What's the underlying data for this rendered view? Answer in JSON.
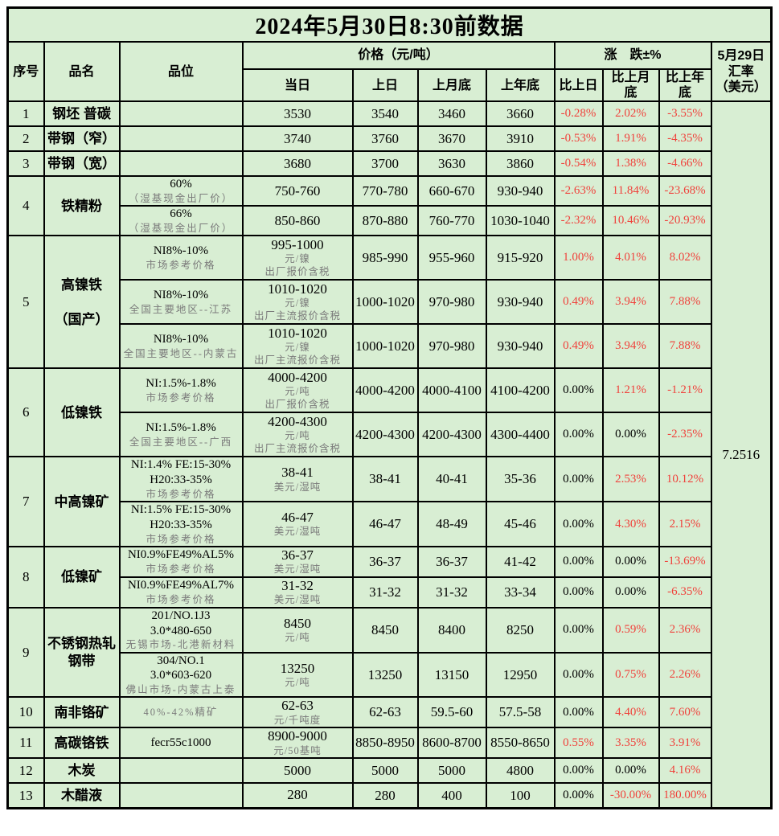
{
  "title": "2024年5月30日8:30前数据",
  "colors": {
    "cell_bg": "#d8eed3",
    "accent_red": "#f0423c",
    "subtext": "#7b7b7b",
    "border": "#000000"
  },
  "columns": {
    "serial": "序号",
    "product": "品名",
    "grade": "品位",
    "price_group": "价格（元/吨）",
    "today": "当日",
    "prev_day": "上日",
    "month_end": "上月底",
    "year_end": "上年底",
    "delta_group": "涨　跌±%",
    "vs_prev_day": "比上日",
    "vs_month_end": "比上月\n底",
    "vs_year_end": "比上年\n底",
    "exchange": "5月29日\n汇率\n（美元）"
  },
  "exchange": {
    "value": "7.2516"
  },
  "rows": [
    {
      "no": "1",
      "name": "钢坯 普碳",
      "subrows": [
        {
          "grade": [],
          "grade_sub": [],
          "price": "3530",
          "price_sub": [],
          "prev": "3540",
          "month": "3460",
          "year": "3660",
          "d1": "-0.28%",
          "d2": "2.02%",
          "d3": "-3.55%"
        }
      ]
    },
    {
      "no": "2",
      "name": "带钢（窄）",
      "subrows": [
        {
          "grade": [],
          "grade_sub": [],
          "price": "3740",
          "price_sub": [],
          "prev": "3760",
          "month": "3670",
          "year": "3910",
          "d1": "-0.53%",
          "d2": "1.91%",
          "d3": "-4.35%"
        }
      ]
    },
    {
      "no": "3",
      "name": "带钢（宽）",
      "subrows": [
        {
          "grade": [],
          "grade_sub": [],
          "price": "3680",
          "price_sub": [],
          "prev": "3700",
          "month": "3630",
          "year": "3860",
          "d1": "-0.54%",
          "d2": "1.38%",
          "d3": "-4.66%"
        }
      ]
    },
    {
      "no": "4",
      "name": "铁精粉",
      "subrows": [
        {
          "grade": [
            "60%"
          ],
          "grade_sub": [
            "（湿基现金出厂价）"
          ],
          "price": "750-760",
          "price_sub": [],
          "prev": "770-780",
          "month": "660-670",
          "year": "930-940",
          "d1": "-2.63%",
          "d2": "11.84%",
          "d3": "-23.68%"
        },
        {
          "grade": [
            "66%"
          ],
          "grade_sub": [
            "（湿基现金出厂价）"
          ],
          "price": "850-860",
          "price_sub": [],
          "prev": "870-880",
          "month": "760-770",
          "year": "1030-1040",
          "d1": "-2.32%",
          "d2": "10.46%",
          "d3": "-20.93%"
        }
      ]
    },
    {
      "no": "5",
      "name": "高镍铁\n\n（国产）",
      "subrows": [
        {
          "grade": [
            "NI8%-10%"
          ],
          "grade_sub": [
            "市场参考价格"
          ],
          "price": "995-1000",
          "price_sub": [
            "元/镍",
            "出厂报价含税"
          ],
          "prev": "985-990",
          "month": "955-960",
          "year": "915-920",
          "d1": "1.00%",
          "d2": "4.01%",
          "d3": "8.02%"
        },
        {
          "grade": [
            "NI8%-10%"
          ],
          "grade_sub": [
            "全国主要地区--江苏"
          ],
          "price": "1010-1020",
          "price_sub": [
            "元/镍",
            "出厂主流报价含税"
          ],
          "prev": "1000-1020",
          "month": "970-980",
          "year": "930-940",
          "d1": "0.49%",
          "d2": "3.94%",
          "d3": "7.88%"
        },
        {
          "grade": [
            "NI8%-10%"
          ],
          "grade_sub": [
            "全国主要地区--内蒙古"
          ],
          "price": "1010-1020",
          "price_sub": [
            "元/镍",
            "出厂主流报价含税"
          ],
          "prev": "1000-1020",
          "month": "970-980",
          "year": "930-940",
          "d1": "0.49%",
          "d2": "3.94%",
          "d3": "7.88%"
        }
      ]
    },
    {
      "no": "6",
      "name": "低镍铁",
      "subrows": [
        {
          "grade": [
            "NI:1.5%-1.8%"
          ],
          "grade_sub": [
            "市场参考价格"
          ],
          "price": "4000-4200",
          "price_sub": [
            "元/吨",
            "出厂报价含税"
          ],
          "prev": "4000-4200",
          "month": "4000-4100",
          "year": "4100-4200",
          "d1": "0.00%",
          "d2": "1.21%",
          "d3": "-1.21%"
        },
        {
          "grade": [
            "NI:1.5%-1.8%"
          ],
          "grade_sub": [
            "全国主要地区--广西"
          ],
          "price": "4200-4300",
          "price_sub": [
            "元/吨",
            "出厂主流报价含税"
          ],
          "prev": "4200-4300",
          "month": "4200-4300",
          "year": "4300-4400",
          "d1": "0.00%",
          "d2": "0.00%",
          "d3": "-2.35%"
        }
      ]
    },
    {
      "no": "7",
      "name": "中高镍矿",
      "subrows": [
        {
          "grade": [
            "NI:1.4% FE:15-30%",
            "H20:33-35%"
          ],
          "grade_sub": [
            "市场参考价格"
          ],
          "price": "38-41",
          "price_sub": [
            "美元/湿吨"
          ],
          "prev": "38-41",
          "month": "40-41",
          "year": "35-36",
          "d1": "0.00%",
          "d2": "2.53%",
          "d3": "10.12%"
        },
        {
          "grade": [
            "NI:1.5% FE:15-30%",
            "H20:33-35%"
          ],
          "grade_sub": [
            "市场参考价格"
          ],
          "price": "46-47",
          "price_sub": [
            "美元/湿吨"
          ],
          "prev": "46-47",
          "month": "48-49",
          "year": "45-46",
          "d1": "0.00%",
          "d2": "4.30%",
          "d3": "2.15%"
        }
      ]
    },
    {
      "no": "8",
      "name": "低镍矿",
      "subrows": [
        {
          "grade": [
            "NI0.9%FE49%AL5%"
          ],
          "grade_sub": [
            "市场参考价格"
          ],
          "price": "36-37",
          "price_sub": [
            "美元/湿吨"
          ],
          "prev": "36-37",
          "month": "36-37",
          "year": "41-42",
          "d1": "0.00%",
          "d2": "0.00%",
          "d3": "-13.69%"
        },
        {
          "grade": [
            "NI0.9%FE49%AL7%"
          ],
          "grade_sub": [
            "市场参考价格"
          ],
          "price": "31-32",
          "price_sub": [
            "美元/湿吨"
          ],
          "prev": "31-32",
          "month": "31-32",
          "year": "33-34",
          "d1": "0.00%",
          "d2": "0.00%",
          "d3": "-6.35%"
        }
      ]
    },
    {
      "no": "9",
      "name": "不锈钢热轧钢带",
      "subrows": [
        {
          "grade": [
            "201/NO.1J3",
            "3.0*480-650"
          ],
          "grade_sub": [
            "无锡市场-北港新材料"
          ],
          "price": "8450",
          "price_sub": [
            "元/吨"
          ],
          "prev": "8450",
          "month": "8400",
          "year": "8250",
          "d1": "0.00%",
          "d2": "0.59%",
          "d3": "2.36%"
        },
        {
          "grade": [
            "304/NO.1",
            "3.0*603-620"
          ],
          "grade_sub": [
            "佛山市场-内蒙古上泰"
          ],
          "price": "13250",
          "price_sub": [
            "元/吨"
          ],
          "prev": "13250",
          "month": "13150",
          "year": "12950",
          "d1": "0.00%",
          "d2": "0.75%",
          "d3": "2.26%"
        }
      ]
    },
    {
      "no": "10",
      "name": "南非铬矿",
      "subrows": [
        {
          "grade": [],
          "grade_sub": [
            "40%-42%精矿"
          ],
          "price": "62-63",
          "price_sub": [
            "元/千吨度"
          ],
          "prev": "62-63",
          "month": "59.5-60",
          "year": "57.5-58",
          "d1": "0.00%",
          "d2": "4.40%",
          "d3": "7.60%"
        }
      ]
    },
    {
      "no": "11",
      "name": "高碳铬铁",
      "subrows": [
        {
          "grade": [
            "fecr55c1000"
          ],
          "grade_sub": [],
          "price": "8900-9000",
          "price_sub": [
            "元/50基吨"
          ],
          "prev": "8850-8950",
          "month": "8600-8700",
          "year": "8550-8650",
          "d1": "0.55%",
          "d2": "3.35%",
          "d3": "3.91%"
        }
      ]
    },
    {
      "no": "12",
      "name": "木炭",
      "subrows": [
        {
          "grade": [],
          "grade_sub": [],
          "price": "5000",
          "price_sub": [],
          "prev": "5000",
          "month": "5000",
          "year": "4800",
          "d1": "0.00%",
          "d2": "0.00%",
          "d3": "4.16%"
        }
      ]
    },
    {
      "no": "13",
      "name": "木醋液",
      "subrows": [
        {
          "grade": [],
          "grade_sub": [],
          "price": "280",
          "price_sub": [],
          "prev": "280",
          "month": "400",
          "year": "100",
          "d1": "0.00%",
          "d2": "-30.00%",
          "d3": "180.00%"
        }
      ]
    }
  ]
}
